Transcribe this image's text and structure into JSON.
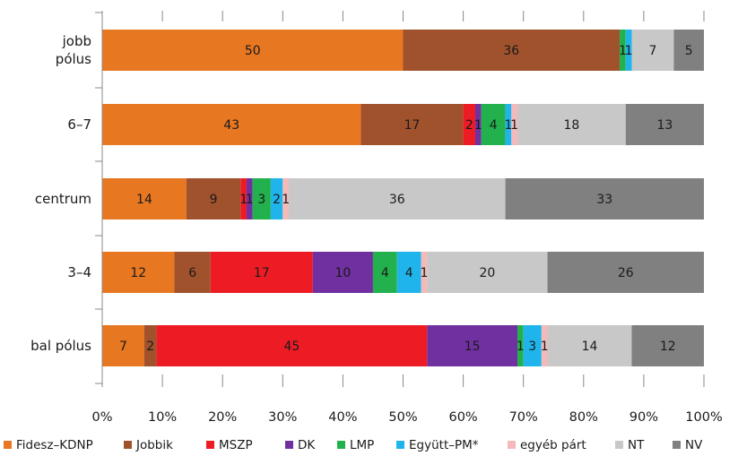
{
  "chart_data": {
    "type": "bar",
    "orientation": "horizontal",
    "stacked": "percent",
    "categories": [
      [
        "jobb",
        "pólus"
      ],
      [
        "6–7"
      ],
      [
        "centrum"
      ],
      [
        "3–4"
      ],
      [
        "bal pólus"
      ]
    ],
    "series": [
      {
        "name": "Fidesz–KDNP",
        "color": "#e87722",
        "values": [
          50,
          43,
          14,
          12,
          7
        ]
      },
      {
        "name": "Jobbik",
        "color": "#a0522d",
        "values": [
          36,
          17,
          9,
          6,
          2
        ]
      },
      {
        "name": "MSZP",
        "color": "#ed1c24",
        "values": [
          0,
          2,
          1,
          17,
          45
        ]
      },
      {
        "name": "DK",
        "color": "#7030a0",
        "values": [
          0,
          1,
          1,
          10,
          15
        ]
      },
      {
        "name": "LMP",
        "color": "#22b14c",
        "values": [
          1,
          4,
          3,
          4,
          1
        ]
      },
      {
        "name": "Együtt–PM*",
        "color": "#1fb5ec",
        "values": [
          1,
          1,
          2,
          4,
          3
        ]
      },
      {
        "name": "egyéb párt",
        "color": "#f4b9b9",
        "values": [
          0,
          1,
          1,
          1,
          1
        ]
      },
      {
        "name": "NT",
        "color": "#c8c8c8",
        "values": [
          7,
          18,
          36,
          20,
          14
        ]
      },
      {
        "name": "NV",
        "color": "#808080",
        "values": [
          5,
          13,
          33,
          26,
          12
        ]
      }
    ],
    "xlim": [
      0,
      100
    ],
    "xticks": [
      "0%",
      "10%",
      "20%",
      "30%",
      "40%",
      "50%",
      "60%",
      "70%",
      "80%",
      "90%",
      "100%"
    ],
    "legend_position": "bottom",
    "grid": false
  }
}
